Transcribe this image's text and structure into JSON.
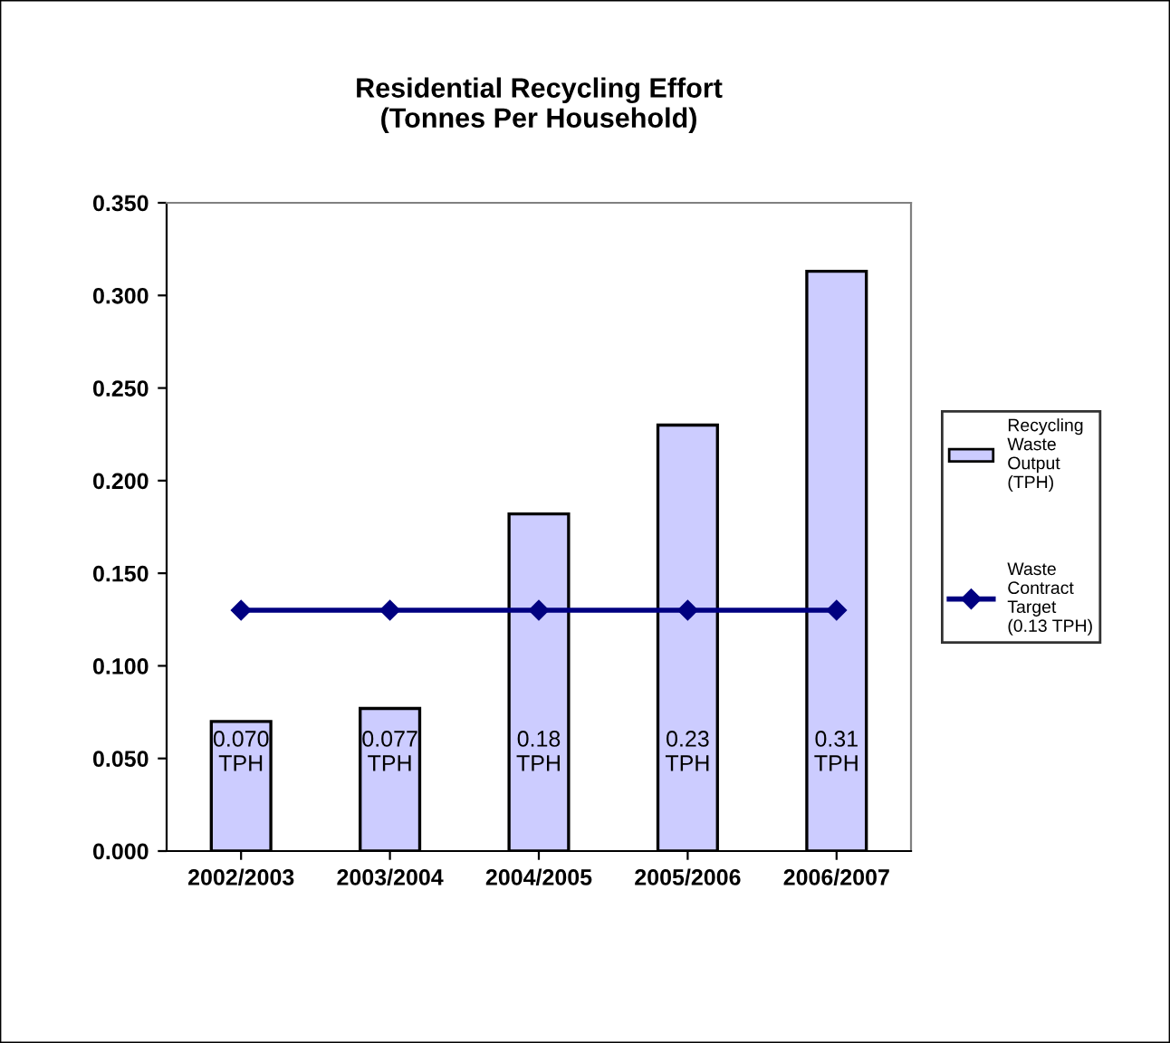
{
  "chart_data": {
    "type": "bar",
    "title": "Residential Recycling Effort\n(Tonnes Per Household)",
    "categories": [
      "2002/2003",
      "2003/2004",
      "2004/2005",
      "2005/2006",
      "2006/2007"
    ],
    "series": [
      {
        "name": "Recycling Waste Output (TPH)",
        "color": "#ccccff",
        "values": [
          0.07,
          0.077,
          0.182,
          0.23,
          0.313
        ],
        "value_labels": [
          "0.070 TPH",
          "0.077 TPH",
          "0.18 TPH",
          "0.23 TPH",
          "0.31 TPH"
        ]
      },
      {
        "name": "Waste Contract Target (0.13 TPH)",
        "type": "line",
        "color": "#000080",
        "marker": "diamond",
        "values": [
          0.13,
          0.13,
          0.13,
          0.13,
          0.13
        ]
      }
    ],
    "ylim": [
      0,
      0.35
    ],
    "yticks": [
      {
        "value": 0,
        "label": "0.000"
      },
      {
        "value": 0.05,
        "label": "0.050"
      },
      {
        "value": 0.1,
        "label": "0.100"
      },
      {
        "value": 0.15,
        "label": "0.150"
      },
      {
        "value": 0.2,
        "label": "0.200"
      },
      {
        "value": 0.25,
        "label": "0.250"
      },
      {
        "value": 0.3,
        "label": "0.300"
      },
      {
        "value": 0.35,
        "label": "0.350"
      }
    ],
    "grid": false,
    "legend": "right"
  }
}
